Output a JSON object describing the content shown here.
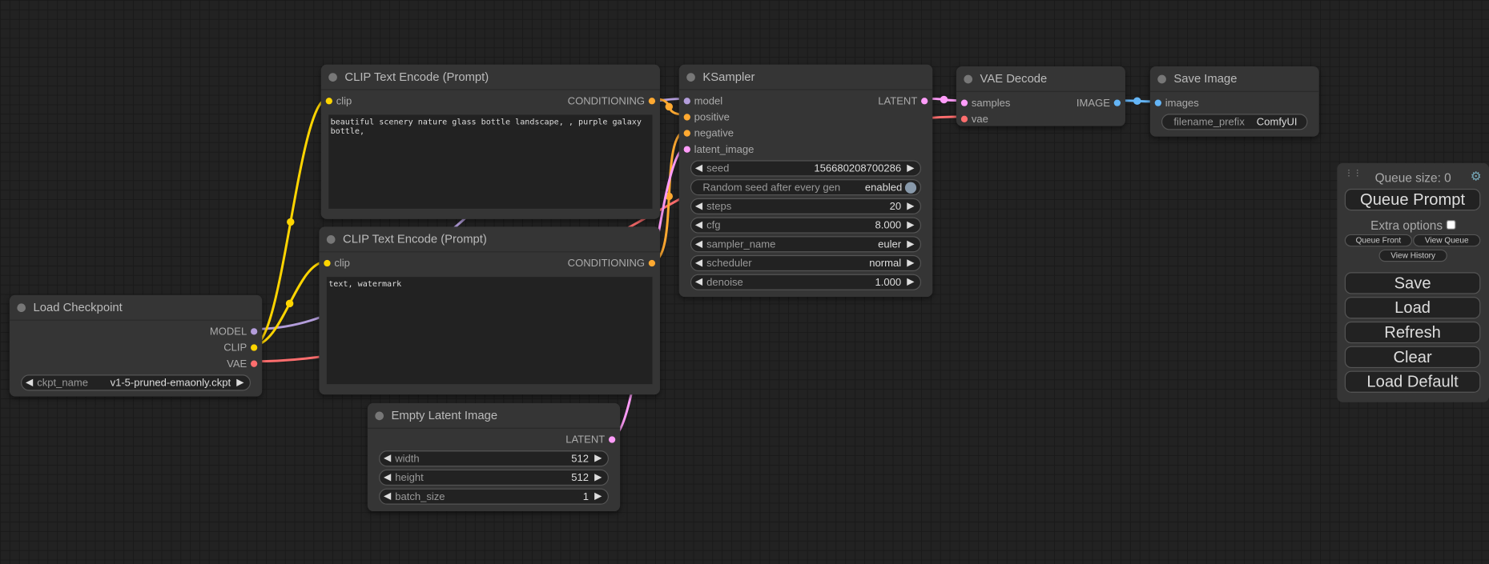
{
  "colors": {
    "model": "#b39ddb",
    "clip": "#ffd500",
    "vae": "#ff6e6e",
    "conditioning": "#ffa931",
    "latent": "#ff9cf9",
    "image": "#64b5f6"
  },
  "nodes": [
    {
      "id": "load-checkpoint",
      "title": "Load Checkpoint",
      "inputs": [],
      "outputs": [
        {
          "label": "MODEL",
          "type": "model"
        },
        {
          "label": "CLIP",
          "type": "clip"
        },
        {
          "label": "VAE",
          "type": "vae"
        }
      ],
      "widgets": [
        {
          "label": "ckpt_name",
          "value": "v1-5-pruned-emaonly.ckpt",
          "kind": "combo"
        }
      ]
    },
    {
      "id": "clip-text-encode-positive",
      "title": "CLIP Text Encode (Prompt)",
      "inputs": [
        {
          "label": "clip",
          "type": "clip"
        }
      ],
      "outputs": [
        {
          "label": "CONDITIONING",
          "type": "conditioning"
        }
      ],
      "text": "beautiful scenery nature glass bottle landscape, , purple galaxy bottle,"
    },
    {
      "id": "clip-text-encode-negative",
      "title": "CLIP Text Encode (Prompt)",
      "inputs": [
        {
          "label": "clip",
          "type": "clip"
        }
      ],
      "outputs": [
        {
          "label": "CONDITIONING",
          "type": "conditioning"
        }
      ],
      "text": "text, watermark"
    },
    {
      "id": "empty-latent-image",
      "title": "Empty Latent Image",
      "inputs": [],
      "outputs": [
        {
          "label": "LATENT",
          "type": "latent"
        }
      ],
      "widgets": [
        {
          "label": "width",
          "value": "512",
          "kind": "number"
        },
        {
          "label": "height",
          "value": "512",
          "kind": "number"
        },
        {
          "label": "batch_size",
          "value": "1",
          "kind": "number"
        }
      ]
    },
    {
      "id": "ksampler",
      "title": "KSampler",
      "inputs": [
        {
          "label": "model",
          "type": "model"
        },
        {
          "label": "positive",
          "type": "conditioning"
        },
        {
          "label": "negative",
          "type": "conditioning"
        },
        {
          "label": "latent_image",
          "type": "latent"
        }
      ],
      "outputs": [
        {
          "label": "LATENT",
          "type": "latent"
        }
      ],
      "widgets": [
        {
          "label": "seed",
          "value": "156680208700286",
          "kind": "number"
        },
        {
          "label": "Random seed after every gen",
          "value": "enabled",
          "kind": "toggle"
        },
        {
          "label": "steps",
          "value": "20",
          "kind": "number"
        },
        {
          "label": "cfg",
          "value": "8.000",
          "kind": "number"
        },
        {
          "label": "sampler_name",
          "value": "euler",
          "kind": "combo"
        },
        {
          "label": "scheduler",
          "value": "normal",
          "kind": "combo"
        },
        {
          "label": "denoise",
          "value": "1.000",
          "kind": "number"
        }
      ]
    },
    {
      "id": "vae-decode",
      "title": "VAE Decode",
      "inputs": [
        {
          "label": "samples",
          "type": "latent"
        },
        {
          "label": "vae",
          "type": "vae"
        }
      ],
      "outputs": [
        {
          "label": "IMAGE",
          "type": "image"
        }
      ]
    },
    {
      "id": "save-image",
      "title": "Save Image",
      "inputs": [
        {
          "label": "images",
          "type": "image"
        }
      ],
      "outputs": [],
      "widgets": [
        {
          "label": "filename_prefix",
          "value": "ComfyUI",
          "kind": "text"
        }
      ]
    }
  ],
  "panel": {
    "queue_size": "Queue size: 0",
    "queue_prompt": "Queue Prompt",
    "extra_options": "Extra options",
    "extra_options_checked": false,
    "queue_front": "Queue Front",
    "view_queue": "View Queue",
    "view_history": "View History",
    "save": "Save",
    "load": "Load",
    "refresh": "Refresh",
    "clear": "Clear",
    "load_default": "Load Default"
  }
}
